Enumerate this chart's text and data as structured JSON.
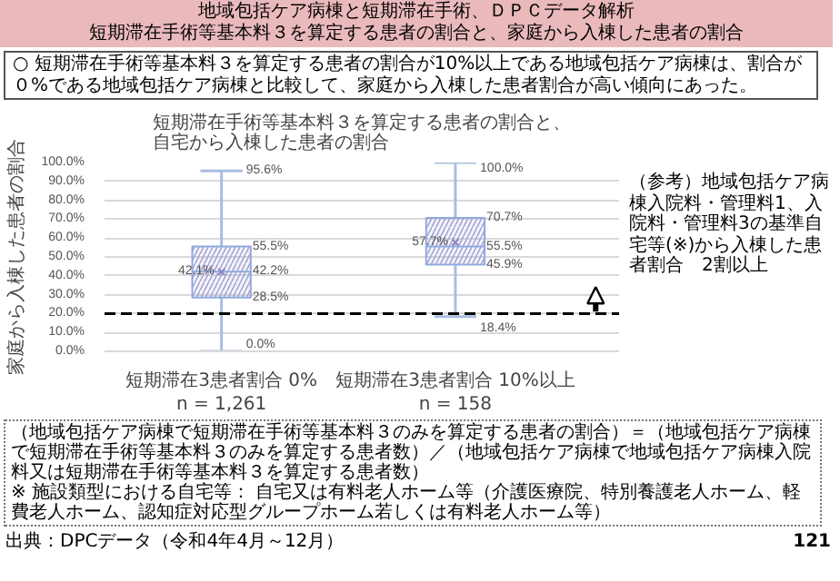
{
  "chart_data": {
    "type": "box",
    "title": "地域包括ケア病棟と短期滞在手術、ＤＰＣデータ解析",
    "subtitle": "短期滞在手術等基本料３を算定する患者の割合と、家庭から入棟した患者の割合",
    "ylabel": "家庭から入棟した患者の割合",
    "categories": [
      "短期滞在3患者割合 0%\nn = 1,261",
      "短期滞在3患者割合 10%以上\nn = 158"
    ],
    "colors": [
      "#8faadc",
      "#8faadc"
    ],
    "boxes": [
      {
        "low": 0,
        "q1": 28.5,
        "median": 42.2,
        "q3": 55.5,
        "high": 95.6,
        "mean": 42.1
      },
      {
        "low": 18.4,
        "q1": 45.9,
        "median": 55.5,
        "q3": 70.7,
        "high": 100,
        "mean": 57.7
      }
    ],
    "ylim": [
      0,
      100
    ],
    "yticks": [
      {
        "value": 0,
        "label": "0.0%"
      },
      {
        "value": 10,
        "label": "10.0%"
      },
      {
        "value": 20,
        "label": "20.0%"
      },
      {
        "value": 30,
        "label": "30.0%"
      },
      {
        "value": 40,
        "label": "40.0%"
      },
      {
        "value": 50,
        "label": "50.0%"
      },
      {
        "value": 60,
        "label": "60.0%"
      },
      {
        "value": 70,
        "label": "70.0%"
      },
      {
        "value": 80,
        "label": "80.0%"
      },
      {
        "value": 90,
        "label": "90.0%"
      },
      {
        "value": 100,
        "label": "100.0%"
      }
    ],
    "grid": "y",
    "ref_lines": [
      {
        "axis": "y",
        "value": 20,
        "label": "（参考）地域包括ケア病棟入院料・管理料1、入院料・管理料3の基準自宅等(※)から入棟した患者割合　2割以上",
        "color": "#000000",
        "line_style": "dashed"
      }
    ],
    "annotations": [
      "○ 短期滞在手術等基本料３を算定する患者の割合が10%以上である地域包括ケア病棟は、割合が０%である地域包括ケア病棟と比較して、家庭から入棟した患者割合が高い傾向にあった。",
      "短期滞在手術等基本料３を算定する患者の割合と、自宅から入棟した患者の割合",
      {
        "text": "95.6%",
        "x": "短期滞在3患者割合 0%\nn = 1,261",
        "y": 95.6
      },
      {
        "text": "55.5%",
        "x": "短期滞在3患者割合 0%\nn = 1,261",
        "y": 55.5
      },
      {
        "text": "42.1%",
        "x": "短期滞在3患者割合 0%\nn = 1,261",
        "y": 42.1
      },
      {
        "text": "42.2%",
        "x": "短期滞在3患者割合 0%\nn = 1,261",
        "y": 42.2
      },
      {
        "text": "28.5%",
        "x": "短期滞在3患者割合 0%\nn = 1,261",
        "y": 28.5
      },
      {
        "text": "0.0%",
        "x": "短期滞在3患者割合 0%\nn = 1,261",
        "y": 0
      },
      {
        "text": "100.0%",
        "x": "短期滞在3患者割合 10%以上\nn = 158",
        "y": 100
      },
      {
        "text": "70.7%",
        "x": "短期滞在3患者割合 10%以上\nn = 158",
        "y": 70.7
      },
      {
        "text": "57.7%",
        "x": "短期滞在3患者割合 10%以上\nn = 158",
        "y": 57.7
      },
      {
        "text": "55.5%",
        "x": "短期滞在3患者割合 10%以上\nn = 158",
        "y": 55.5
      },
      {
        "text": "45.9%",
        "x": "短期滞在3患者割合 10%以上\nn = 158",
        "y": 45.9
      },
      {
        "text": "18.4%",
        "x": "短期滞在3患者割合 10%以上\nn = 158",
        "y": 18.4
      },
      "（地域包括ケア病棟で短期滞在手術等基本料３のみを算定する患者の割合）＝（地域包括ケア病棟で短期滞在手術等基本料３のみを算定する患者数）／（地域包括ケア病棟で地域包括ケア病棟入院料又は短期滞在手術等基本料３を算定する患者数）",
      "※ 施設類型における自宅等： 自宅又は有料老人ホーム等（介護医療院、特別養護老人ホーム、軽費老人ホーム、認知症対応型グループホーム若しくは有料老人ホーム等）",
      "出典：DPCデータ（令和4年4月～12月）",
      "121"
    ]
  }
}
